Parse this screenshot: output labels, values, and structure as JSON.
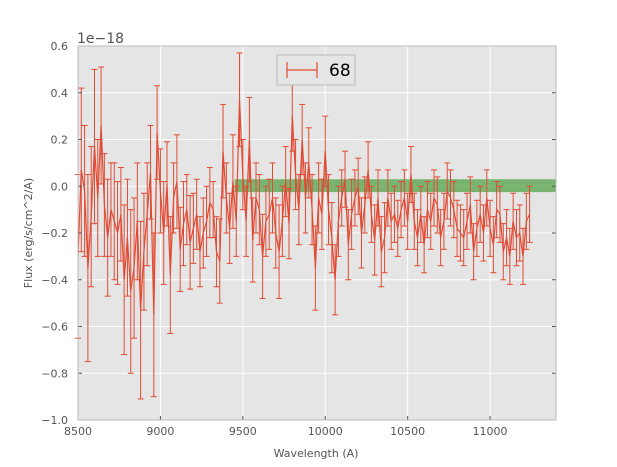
{
  "chart_data": {
    "type": "line",
    "title": "",
    "xlabel": "Wavelength (A)",
    "ylabel": "Flux (erg/s/cm^2/A)",
    "y_offset_label": "1e−18",
    "xlim": [
      8500,
      11400
    ],
    "ylim": [
      -1.0,
      0.6
    ],
    "x_ticks": [
      8500,
      9000,
      9500,
      10000,
      10500,
      11000
    ],
    "x_tick_labels": [
      "8500",
      "9000",
      "9500",
      "10000",
      "10500",
      "11000"
    ],
    "y_ticks": [
      -1.0,
      -0.8,
      -0.6,
      -0.4,
      -0.2,
      0.0,
      0.2,
      0.4,
      0.6
    ],
    "y_tick_labels": [
      "−1.0",
      "−0.8",
      "−0.6",
      "−0.4",
      "−0.2",
      "0.0",
      "0.2",
      "0.4",
      "0.6"
    ],
    "grid": true,
    "legend_position": "top-center",
    "background_color": "#e5e5e5",
    "series": [
      {
        "name": "68",
        "color": "#e24a33",
        "style": "errorbar-line",
        "x_start": 8500,
        "x_step": 20,
        "y": [
          -0.3,
          0.07,
          -0.02,
          -0.35,
          -0.13,
          0.17,
          -0.05,
          0.26,
          -0.08,
          -0.22,
          -0.1,
          -0.15,
          -0.2,
          -0.12,
          -0.4,
          -0.22,
          -0.45,
          -0.35,
          -0.15,
          -0.53,
          -0.28,
          -0.12,
          0.06,
          -0.55,
          0.23,
          -0.02,
          -0.2,
          0.01,
          -0.38,
          -0.05,
          0.02,
          -0.27,
          -0.16,
          -0.1,
          -0.24,
          -0.18,
          -0.12,
          -0.28,
          -0.2,
          -0.15,
          -0.07,
          -0.1,
          -0.28,
          -0.32,
          0.15,
          -0.05,
          -0.18,
          0.02,
          -0.15,
          0.37,
          0.05,
          -0.15,
          0.2,
          -0.23,
          -0.05,
          -0.1,
          -0.3,
          -0.15,
          -0.12,
          -0.05,
          -0.2,
          -0.28,
          -0.15,
          0.02,
          -0.16,
          0.3,
          0.05,
          -0.1,
          0.2,
          -0.05,
          0.1,
          -0.1,
          -0.35,
          -0.05,
          -0.12,
          0.15,
          -0.1,
          -0.22,
          -0.4,
          -0.15,
          -0.05,
          0.03,
          -0.25,
          -0.12,
          -0.05,
          0.0,
          -0.2,
          -0.08,
          0.07,
          -0.12,
          -0.23,
          -0.05,
          -0.28,
          -0.22,
          -0.05,
          -0.15,
          -0.12,
          -0.18,
          -0.1,
          -0.05,
          -0.15,
          0.05,
          -0.15,
          -0.22,
          -0.12,
          -0.25,
          -0.1,
          -0.15,
          -0.05,
          -0.08,
          -0.22,
          -0.15,
          -0.02,
          -0.05,
          -0.1,
          -0.18,
          -0.2,
          -0.22,
          -0.15,
          -0.08,
          -0.28,
          -0.18,
          -0.12,
          -0.2,
          -0.05,
          -0.18,
          -0.25,
          -0.1,
          -0.12,
          -0.28,
          -0.22,
          -0.3,
          -0.15,
          -0.22,
          -0.2,
          -0.3,
          -0.15,
          -0.12
        ],
        "yerr": [
          0.35,
          0.35,
          0.28,
          0.4,
          0.3,
          0.33,
          0.25,
          0.25,
          0.22,
          0.25,
          0.2,
          0.25,
          0.22,
          0.2,
          0.32,
          0.25,
          0.35,
          0.3,
          0.25,
          0.38,
          0.25,
          0.22,
          0.2,
          0.35,
          0.2,
          0.18,
          0.22,
          0.18,
          0.25,
          0.15,
          0.2,
          0.18,
          0.18,
          0.15,
          0.2,
          0.15,
          0.15,
          0.15,
          0.15,
          0.15,
          0.15,
          0.12,
          0.15,
          0.18,
          0.2,
          0.15,
          0.15,
          0.2,
          0.15,
          0.2,
          0.15,
          0.15,
          0.18,
          0.18,
          0.15,
          0.15,
          0.18,
          0.15,
          0.15,
          0.15,
          0.15,
          0.2,
          0.15,
          0.15,
          0.15,
          0.15,
          0.15,
          0.15,
          0.15,
          0.15,
          0.15,
          0.15,
          0.18,
          0.15,
          0.15,
          0.15,
          0.15,
          0.15,
          0.15,
          0.15,
          0.12,
          0.12,
          0.15,
          0.15,
          0.12,
          0.12,
          0.15,
          0.12,
          0.12,
          0.12,
          0.15,
          0.12,
          0.15,
          0.15,
          0.12,
          0.12,
          0.12,
          0.12,
          0.12,
          0.12,
          0.12,
          0.12,
          0.12,
          0.12,
          0.12,
          0.12,
          0.12,
          0.12,
          0.12,
          0.12,
          0.12,
          0.12,
          0.12,
          0.12,
          0.12,
          0.12,
          0.12,
          0.12,
          0.12,
          0.12,
          0.12,
          0.12,
          0.12,
          0.12,
          0.12,
          0.12,
          0.12,
          0.12,
          0.12,
          0.12,
          0.12,
          0.12,
          0.12,
          0.12,
          0.12,
          0.12,
          0.12,
          0.12
        ]
      }
    ],
    "bands": [
      {
        "x_from": 9450,
        "x_to": 11400,
        "y_from": -0.025,
        "y_to": 0.03,
        "color": "#4aa03f",
        "opacity": 0.7
      }
    ]
  }
}
